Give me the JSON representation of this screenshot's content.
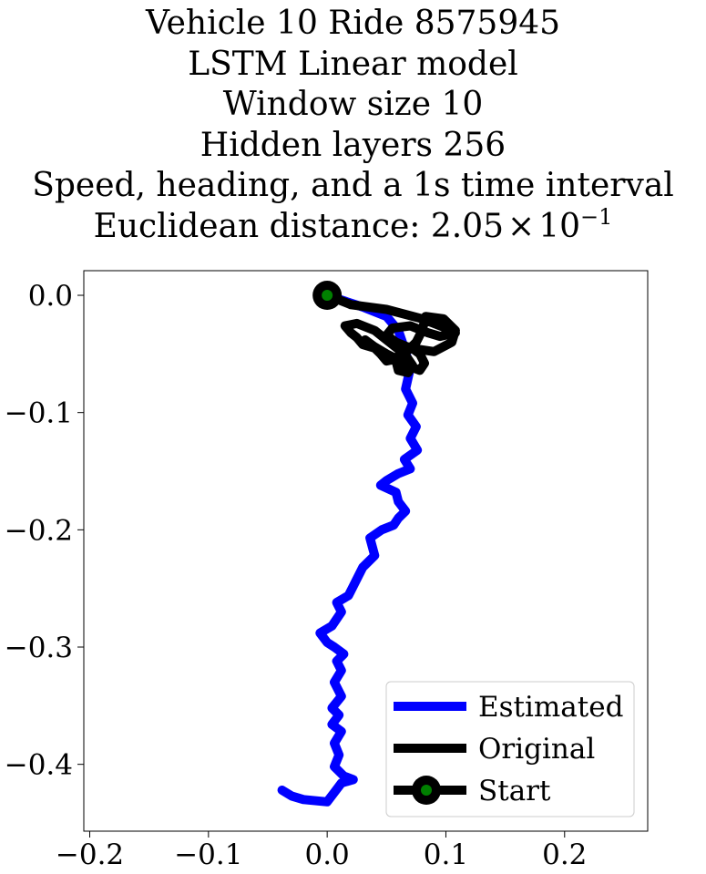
{
  "chart_data": {
    "type": "line",
    "title_lines": [
      "Vehicle 10 Ride 8575945",
      "LSTM Linear model",
      "Window size 10",
      "Hidden layers 256",
      "Speed, heading, and a 1s time interval"
    ],
    "distance_prefix": "Euclidean distance: 2.05",
    "distance_times": "×",
    "distance_base": "10",
    "distance_exp": "−1",
    "xlim": [
      -0.205,
      0.27
    ],
    "ylim": [
      -0.457,
      0.021
    ],
    "xticks": [
      -0.2,
      -0.1,
      0.0,
      0.1,
      0.2
    ],
    "xtick_labels": [
      "−0.2",
      "−0.1",
      "0.0",
      "0.1",
      "0.2"
    ],
    "yticks": [
      0.0,
      -0.1,
      -0.2,
      -0.3,
      -0.4
    ],
    "ytick_labels": [
      "0.0",
      "−0.1",
      "−0.2",
      "−0.3",
      "−0.4"
    ],
    "legend": {
      "position": "lower-right",
      "entries": [
        "Estimated",
        "Original",
        "Start"
      ]
    },
    "series": [
      {
        "name": "Estimated",
        "color": "#0000ff",
        "points": [
          [
            0.0,
            0.0
          ],
          [
            0.03,
            -0.01
          ],
          [
            0.05,
            -0.018
          ],
          [
            0.06,
            -0.03
          ],
          [
            0.065,
            -0.045
          ],
          [
            0.07,
            -0.062
          ],
          [
            0.066,
            -0.08
          ],
          [
            0.072,
            -0.092
          ],
          [
            0.068,
            -0.102
          ],
          [
            0.075,
            -0.112
          ],
          [
            0.07,
            -0.122
          ],
          [
            0.076,
            -0.132
          ],
          [
            0.065,
            -0.14
          ],
          [
            0.07,
            -0.148
          ],
          [
            0.06,
            -0.152
          ],
          [
            0.05,
            -0.158
          ],
          [
            0.045,
            -0.162
          ],
          [
            0.058,
            -0.168
          ],
          [
            0.06,
            -0.176
          ],
          [
            0.066,
            -0.184
          ],
          [
            0.06,
            -0.19
          ],
          [
            0.056,
            -0.196
          ],
          [
            0.046,
            -0.2
          ],
          [
            0.036,
            -0.207
          ],
          [
            0.04,
            -0.222
          ],
          [
            0.03,
            -0.232
          ],
          [
            0.022,
            -0.248
          ],
          [
            0.018,
            -0.256
          ],
          [
            0.008,
            -0.262
          ],
          [
            0.012,
            -0.27
          ],
          [
            0.004,
            -0.282
          ],
          [
            -0.006,
            -0.288
          ],
          [
            0.0,
            -0.296
          ],
          [
            0.006,
            -0.3
          ],
          [
            0.014,
            -0.306
          ],
          [
            0.008,
            -0.312
          ],
          [
            0.012,
            -0.32
          ],
          [
            0.006,
            -0.33
          ],
          [
            0.012,
            -0.342
          ],
          [
            0.004,
            -0.352
          ],
          [
            0.01,
            -0.358
          ],
          [
            0.004,
            -0.366
          ],
          [
            0.012,
            -0.372
          ],
          [
            0.006,
            -0.382
          ],
          [
            0.01,
            -0.392
          ],
          [
            0.006,
            -0.402
          ],
          [
            0.014,
            -0.41
          ],
          [
            0.022,
            -0.413
          ],
          [
            0.012,
            -0.416
          ],
          [
            0.006,
            -0.424
          ],
          [
            0.0,
            -0.432
          ],
          [
            -0.02,
            -0.43
          ],
          [
            -0.03,
            -0.427
          ],
          [
            -0.038,
            -0.422
          ]
        ]
      },
      {
        "name": "Original",
        "color": "#000000",
        "points": [
          [
            0.0,
            0.0
          ],
          [
            0.02,
            -0.008
          ],
          [
            0.05,
            -0.012
          ],
          [
            0.08,
            -0.02
          ],
          [
            0.1,
            -0.028
          ],
          [
            0.108,
            -0.032
          ],
          [
            0.095,
            -0.035
          ],
          [
            0.085,
            -0.032
          ],
          [
            0.07,
            -0.026
          ],
          [
            0.055,
            -0.028
          ],
          [
            0.05,
            -0.034
          ],
          [
            0.058,
            -0.04
          ],
          [
            0.07,
            -0.045
          ],
          [
            0.09,
            -0.048
          ],
          [
            0.105,
            -0.04
          ],
          [
            0.108,
            -0.03
          ],
          [
            0.098,
            -0.02
          ],
          [
            0.083,
            -0.018
          ],
          [
            0.08,
            -0.03
          ],
          [
            0.075,
            -0.04
          ],
          [
            0.065,
            -0.05
          ],
          [
            0.06,
            -0.054
          ],
          [
            0.05,
            -0.056
          ],
          [
            0.045,
            -0.05
          ],
          [
            0.04,
            -0.045
          ],
          [
            0.03,
            -0.042
          ],
          [
            0.025,
            -0.036
          ],
          [
            0.02,
            -0.032
          ],
          [
            0.015,
            -0.026
          ],
          [
            0.025,
            -0.024
          ],
          [
            0.04,
            -0.03
          ],
          [
            0.05,
            -0.038
          ],
          [
            0.06,
            -0.046
          ],
          [
            0.068,
            -0.054
          ],
          [
            0.072,
            -0.06
          ],
          [
            0.068,
            -0.066
          ],
          [
            0.06,
            -0.064
          ],
          [
            0.058,
            -0.056
          ],
          [
            0.062,
            -0.048
          ],
          [
            0.07,
            -0.044
          ],
          [
            0.078,
            -0.05
          ],
          [
            0.082,
            -0.058
          ],
          [
            0.078,
            -0.064
          ],
          [
            0.068,
            -0.06
          ],
          [
            0.062,
            -0.056
          ],
          [
            0.05,
            -0.05
          ],
          [
            0.04,
            -0.044
          ],
          [
            0.032,
            -0.038
          ]
        ]
      }
    ],
    "start_point": [
      0.0,
      0.0
    ]
  }
}
